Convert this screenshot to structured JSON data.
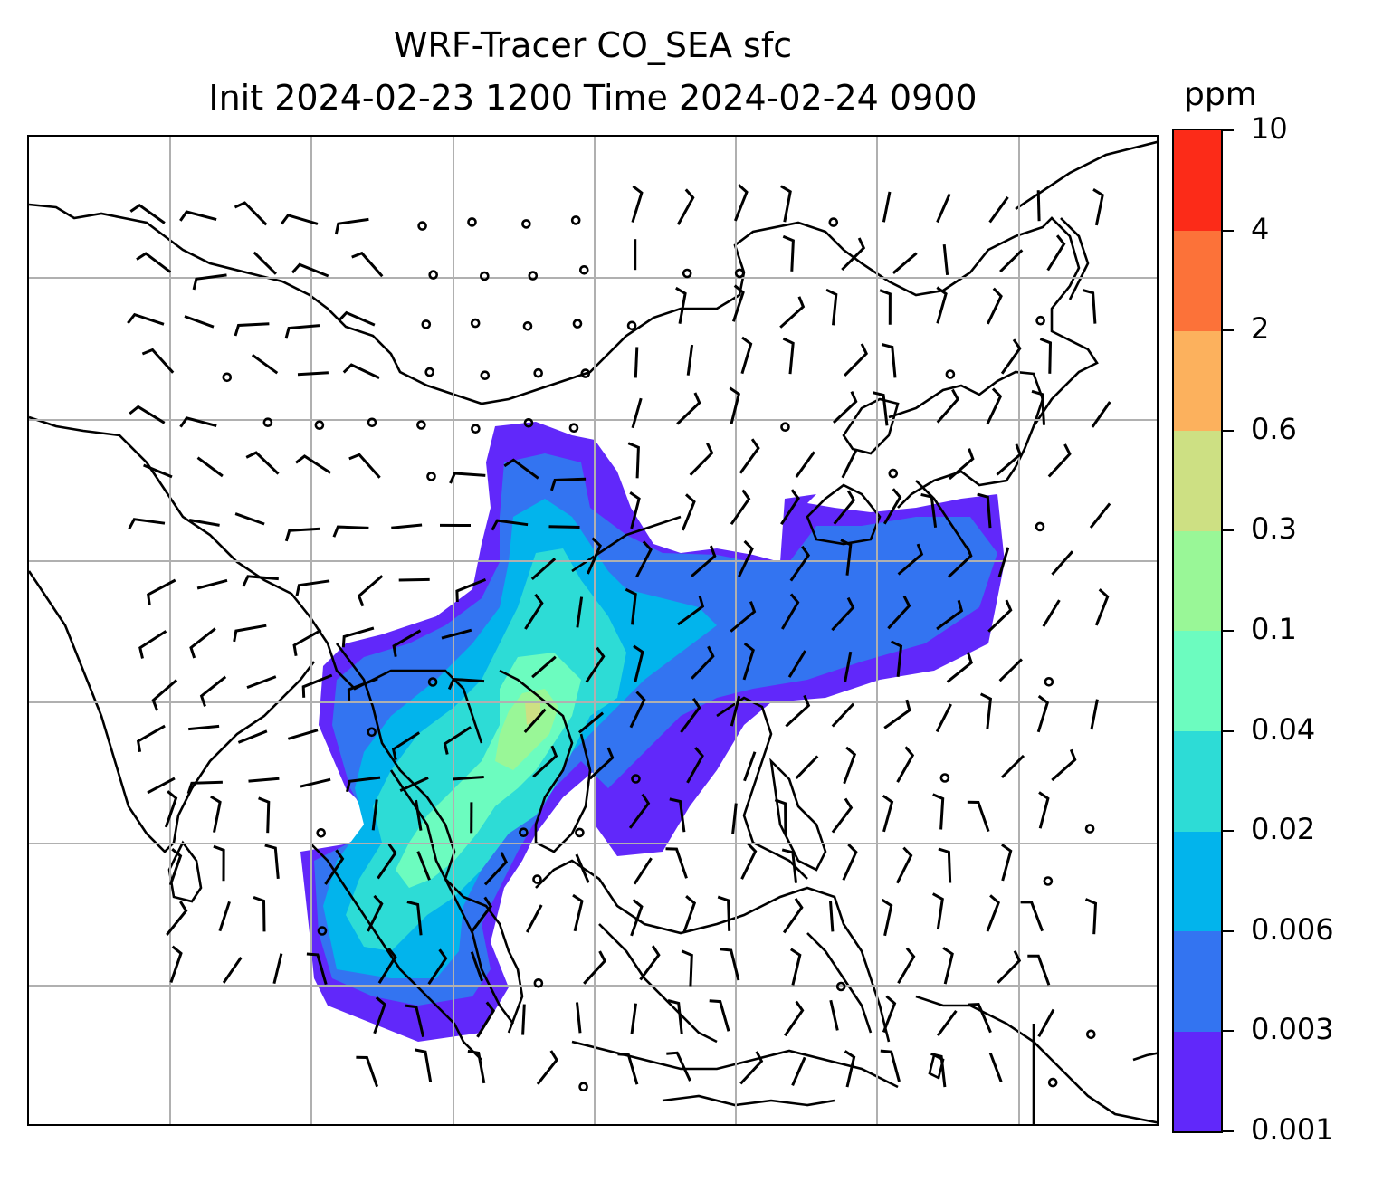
{
  "figure": {
    "title_line1": "WRF-Tracer CO_SEA sfc",
    "title_line2": "Init 2024-02-23 1200 Time 2024-02-24 0900",
    "field": "CO_SEA tracer",
    "overlay": "wind barbs",
    "gridlines": true
  },
  "colorbar": {
    "unit": "ppm",
    "levels": [
      "0.001",
      "0.003",
      "0.006",
      "0.02",
      "0.04",
      "0.1",
      "0.3",
      "0.6",
      "2",
      "4",
      "10"
    ],
    "colors": [
      "#6128fa",
      "#3374f1",
      "#02b4ec",
      "#2ddcd6",
      "#6cfcbf",
      "#99f797",
      "#cde083",
      "#fcb15d",
      "#fc7239",
      "#fc2b18"
    ]
  }
}
